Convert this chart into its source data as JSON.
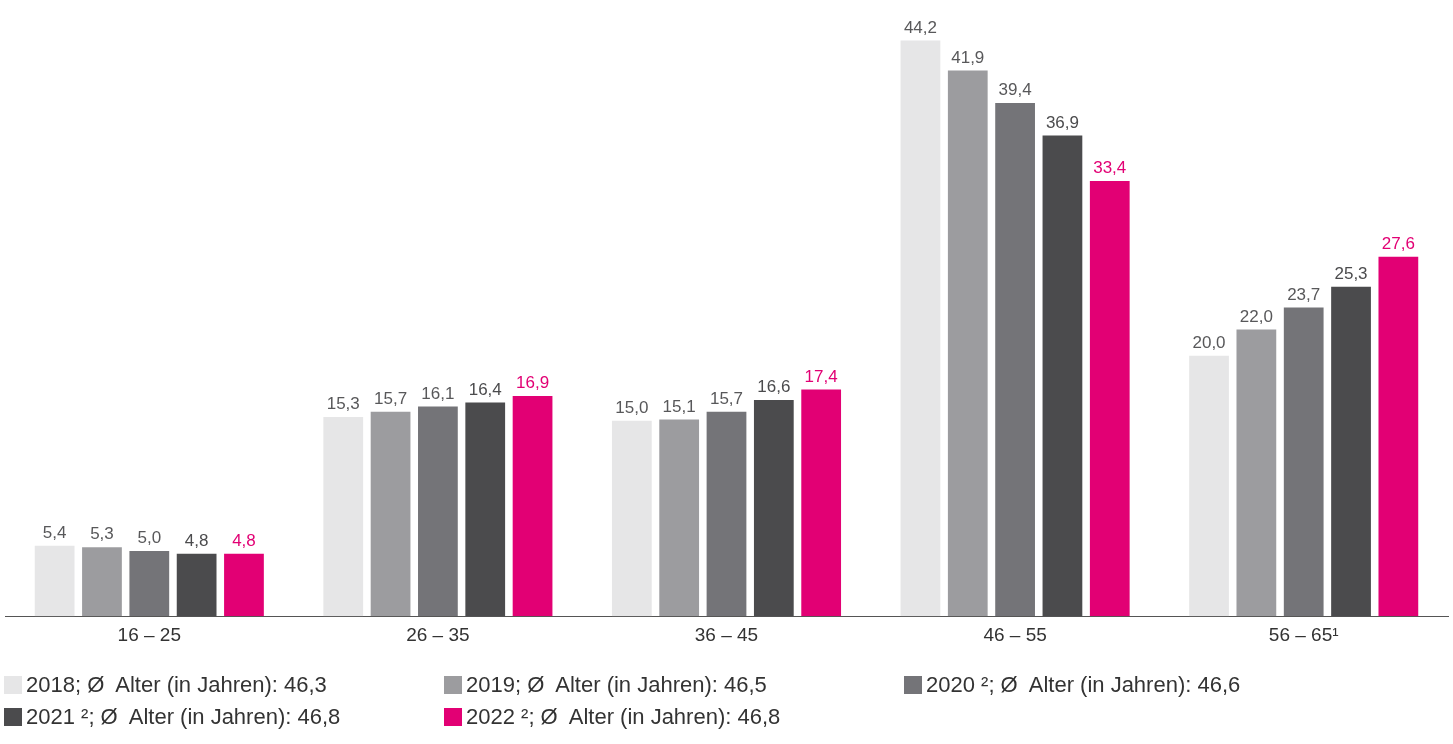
{
  "chart_data": {
    "type": "bar",
    "categories": [
      "16 – 25",
      "26 – 35",
      "36 – 45",
      "46 – 55",
      "56 – 65¹"
    ],
    "series": [
      {
        "name": "2018; Ø  Alter (in Jahren): 46,3",
        "color": "#e6e6e7",
        "values": [
          5.4,
          15.3,
          15.0,
          44.2,
          20.0
        ],
        "value_labels": [
          "5,4",
          "15,3",
          "15,0",
          "44,2",
          "20,0"
        ]
      },
      {
        "name": "2019; Ø  Alter (in Jahren): 46,5",
        "color": "#9c9c9f",
        "values": [
          5.3,
          15.7,
          15.1,
          41.9,
          22.0
        ],
        "value_labels": [
          "5,3",
          "15,7",
          "15,1",
          "41,9",
          "22,0"
        ]
      },
      {
        "name": "2020 ²; Ø  Alter (in Jahren): 46,6",
        "color": "#747478",
        "values": [
          5.0,
          16.1,
          15.7,
          39.4,
          23.7
        ],
        "value_labels": [
          "5,0",
          "16,1",
          "15,7",
          "39,4",
          "23,7"
        ]
      },
      {
        "name": "2021 ²; Ø  Alter (in Jahren): 46,8",
        "color": "#4b4b4d",
        "values": [
          4.8,
          16.4,
          16.6,
          36.9,
          25.3
        ],
        "value_labels": [
          "4,8",
          "16,4",
          "16,6",
          "36,9",
          "25,3"
        ]
      },
      {
        "name": "2022 ²; Ø  Alter (in Jahren): 46,8",
        "color": "#e20074",
        "values": [
          4.8,
          16.9,
          17.4,
          33.4,
          27.6
        ],
        "value_labels": [
          "4,8",
          "16,9",
          "17,4",
          "33,4",
          "27,6"
        ]
      }
    ],
    "grid": false,
    "legend": "bottom"
  }
}
